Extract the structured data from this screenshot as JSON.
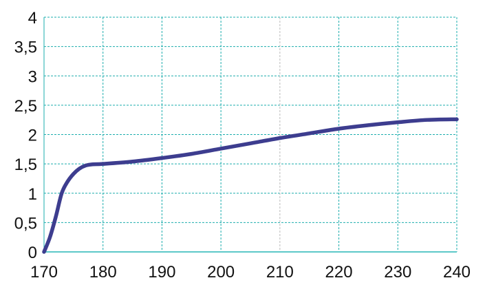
{
  "chart_data": {
    "type": "line",
    "title": "",
    "xlabel": "",
    "ylabel": "",
    "xlim": [
      170,
      240
    ],
    "ylim": [
      0,
      4
    ],
    "grid": true,
    "x_ticks": [
      "170",
      "180",
      "190",
      "200",
      "210",
      "220",
      "230",
      "240"
    ],
    "y_ticks": [
      "0",
      "0,5",
      "1",
      "1,5",
      "2",
      "2,5",
      "3",
      "3,5",
      "4"
    ],
    "series": [
      {
        "color": "#3d3d8f",
        "x": [
          170,
          171,
          172,
          173,
          174,
          175,
          176,
          177,
          178,
          180,
          185,
          190,
          195,
          200,
          205,
          210,
          215,
          220,
          225,
          230,
          235,
          240
        ],
        "y": [
          0,
          0.25,
          0.6,
          1.0,
          1.2,
          1.33,
          1.42,
          1.47,
          1.49,
          1.5,
          1.54,
          1.6,
          1.67,
          1.76,
          1.85,
          1.94,
          2.02,
          2.1,
          2.16,
          2.21,
          2.25,
          2.26
        ]
      }
    ],
    "grid_color": "#1aacac",
    "axis_color": "#5cc8c8"
  }
}
